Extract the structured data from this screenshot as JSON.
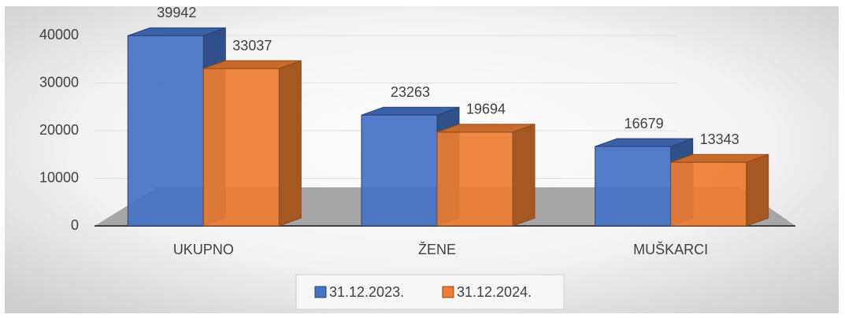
{
  "chart_data": {
    "type": "bar3d",
    "categories": [
      "UKUPNO",
      "ŽENE",
      "MUŠKARCI"
    ],
    "series": [
      {
        "name": "31.12.2023.",
        "color": "#4472c4",
        "values": [
          39942,
          23263,
          16679
        ]
      },
      {
        "name": "31.12.2024.",
        "color": "#ed7d31",
        "values": [
          33037,
          19694,
          13343
        ]
      }
    ],
    "ylim": [
      0,
      40000
    ],
    "yticks": [
      0,
      10000,
      20000,
      30000,
      40000
    ],
    "grid": true,
    "legend": "bottom"
  }
}
